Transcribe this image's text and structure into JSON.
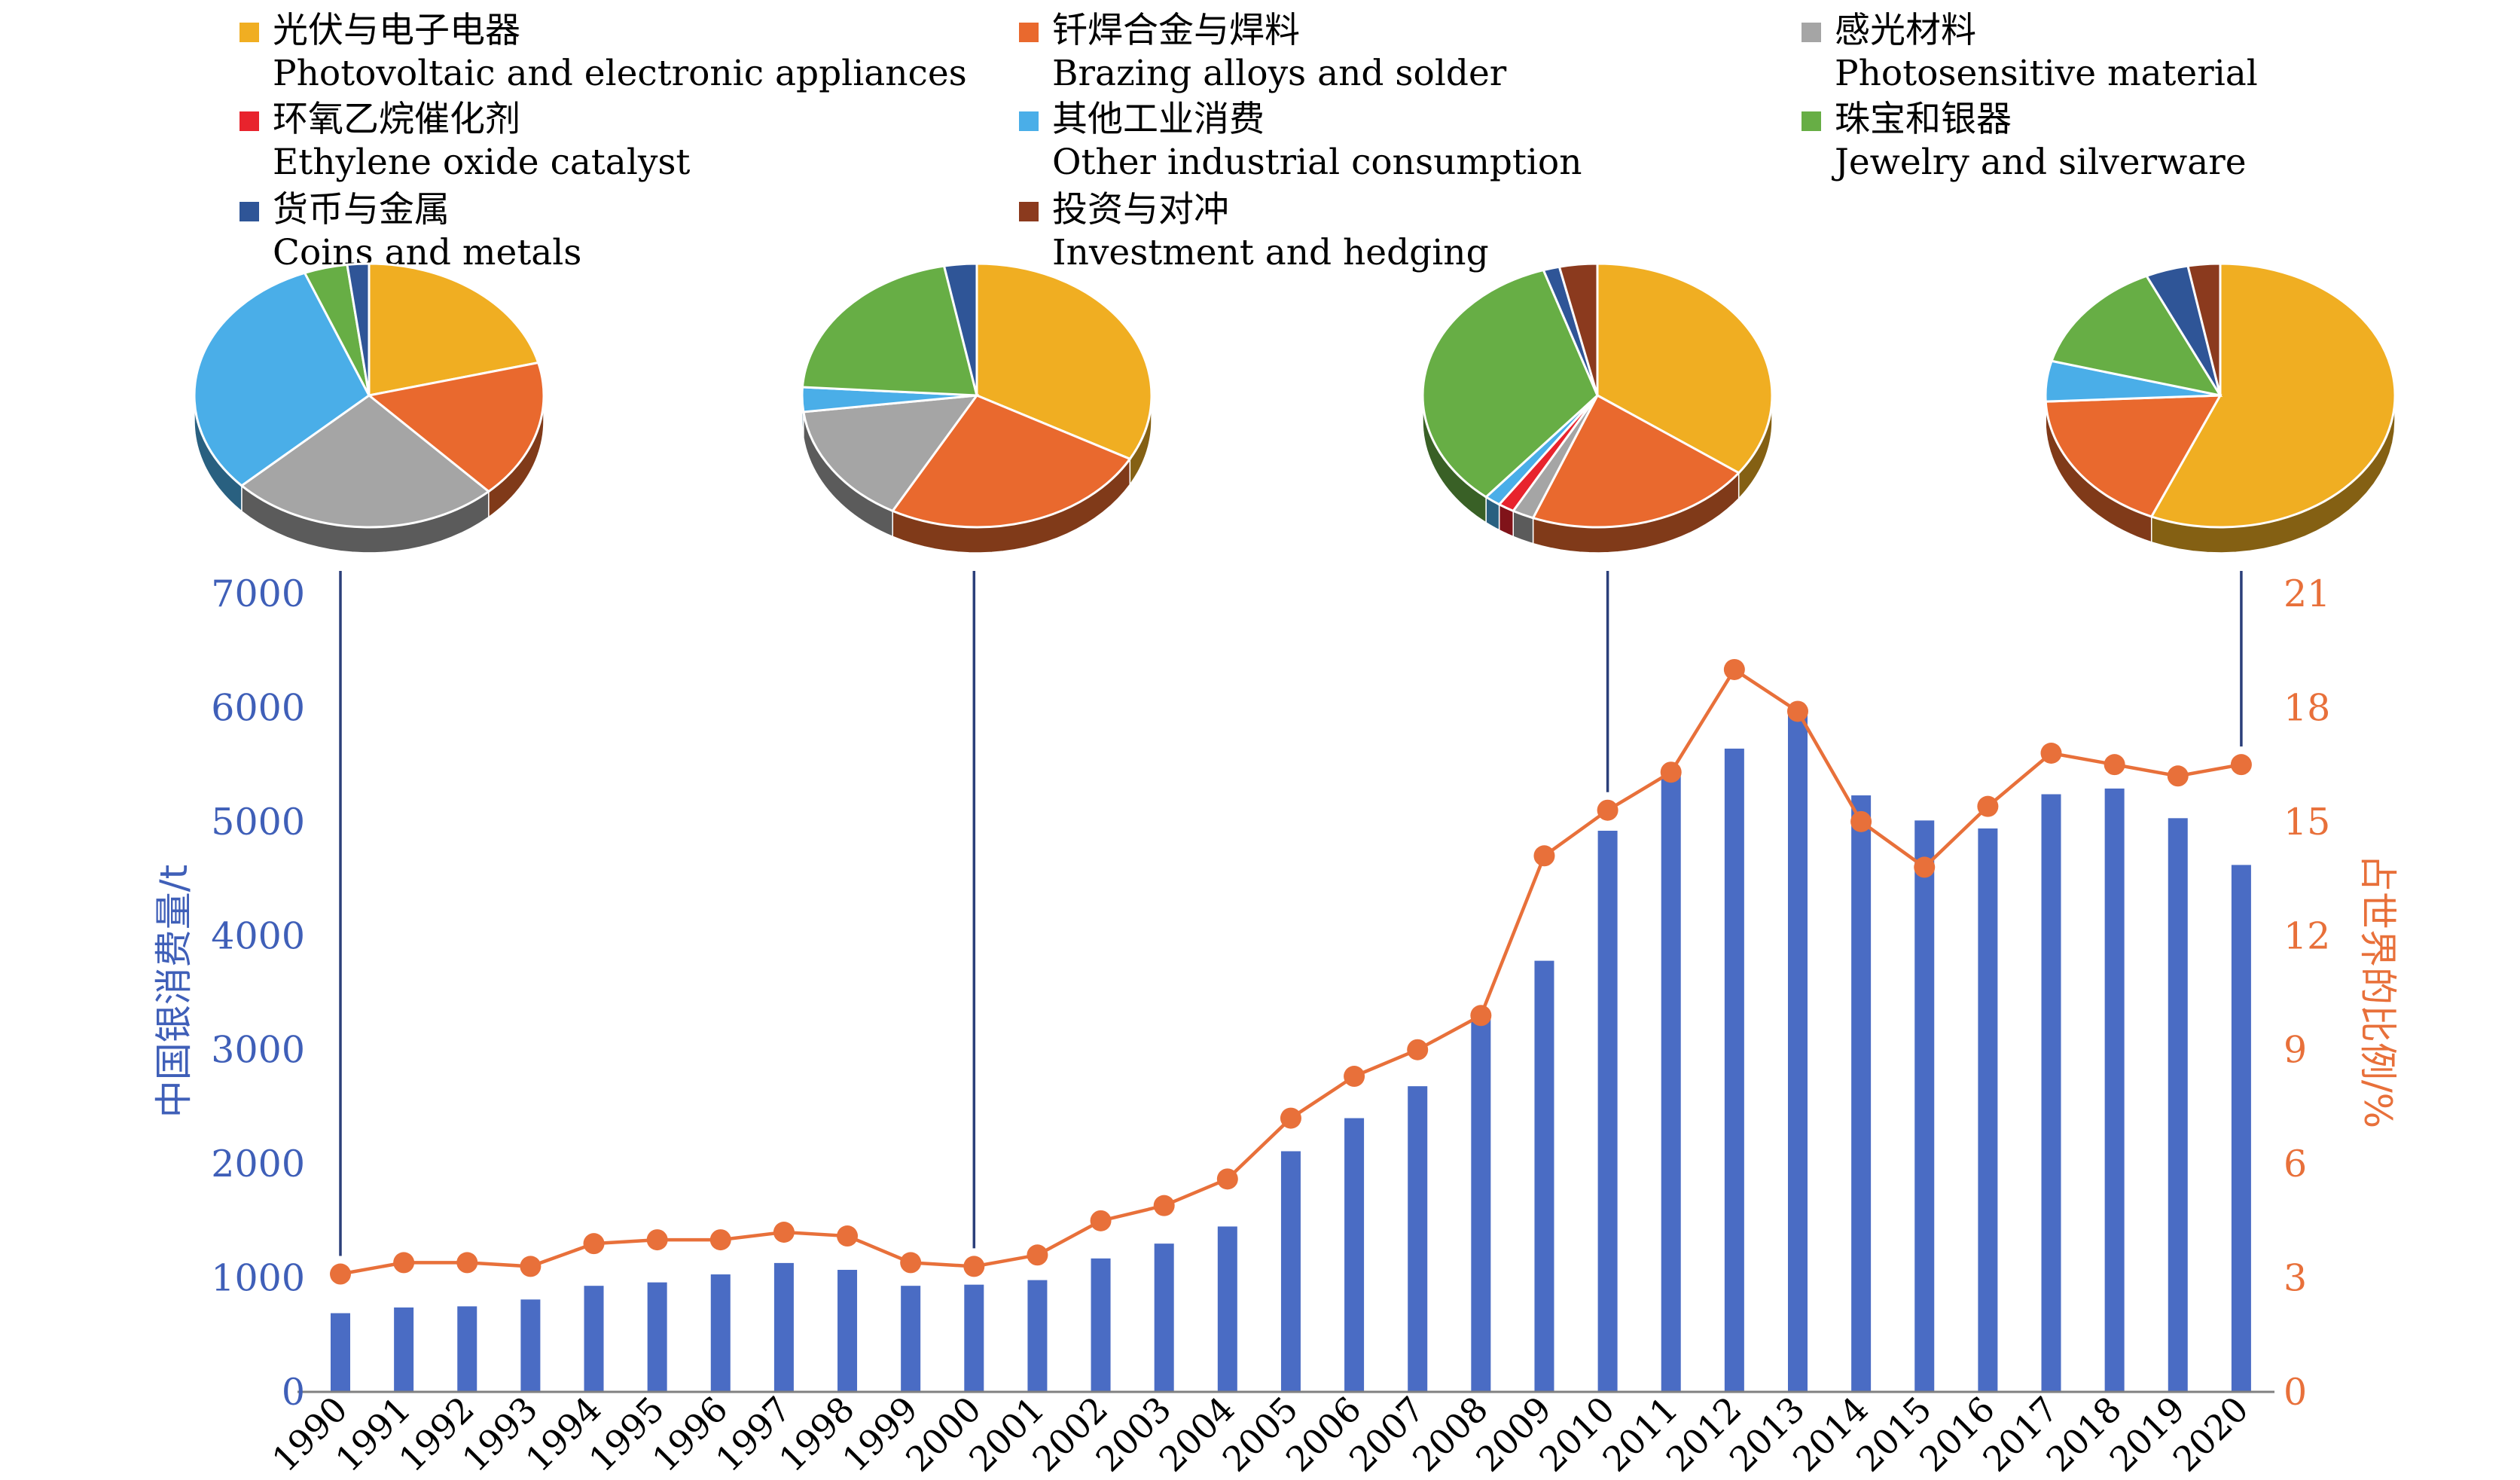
{
  "colors": {
    "photovoltaic": "#F0AE22",
    "brazing": "#E9692E",
    "photosensitive": "#A5A5A5",
    "ethylene": "#E8232D",
    "other_industrial": "#4AAEE8",
    "jewelry": "#67AE45",
    "coins": "#2F5597",
    "investment": "#8B3A1E",
    "bars": "#4A6CC4",
    "line": "#E8703A",
    "left_axis_text": "#3F5FB8",
    "right_axis_text": "#E8703A",
    "leader": "#2B3F7A"
  },
  "legend": [
    {
      "key": "photovoltaic",
      "zh": "光伏与电子电器",
      "en": "Photovoltaic and electronic appliances"
    },
    {
      "key": "brazing",
      "zh": "钎焊合金与焊料",
      "en": "Brazing alloys and solder"
    },
    {
      "key": "photosensitive",
      "zh": "感光材料",
      "en": "Photosensitive material"
    },
    {
      "key": "ethylene",
      "zh": "环氧乙烷催化剂",
      "en": "Ethylene oxide catalyst"
    },
    {
      "key": "other_industrial",
      "zh": "其他工业消费",
      "en": "Other industrial consumption"
    },
    {
      "key": "jewelry",
      "zh": "珠宝和银器",
      "en": "Jewelry and silverware"
    },
    {
      "key": "coins",
      "zh": "货币与金属",
      "en": "Coins and metals"
    },
    {
      "key": "investment",
      "zh": "投资与对冲",
      "en": "Investment and hedging"
    }
  ],
  "chart_data": {
    "type": "bar",
    "title": "",
    "categories": [
      "1990",
      "1991",
      "1992",
      "1993",
      "1994",
      "1995",
      "1996",
      "1997",
      "1998",
      "1999",
      "2000",
      "2001",
      "2002",
      "2003",
      "2004",
      "2005",
      "2006",
      "2007",
      "2008",
      "2009",
      "2010",
      "2011",
      "2012",
      "2013",
      "2014",
      "2015",
      "2016",
      "2017",
      "2018",
      "2019",
      "2020"
    ],
    "series": [
      {
        "name": "中国银消费量/t",
        "type": "bar",
        "axis": "left",
        "values": [
          690,
          740,
          750,
          810,
          930,
          960,
          1030,
          1130,
          1070,
          930,
          940,
          980,
          1170,
          1300,
          1450,
          2110,
          2400,
          2680,
          3290,
          3780,
          4920,
          5450,
          5640,
          5980,
          5230,
          5010,
          4940,
          5240,
          5290,
          5030,
          4620
        ]
      },
      {
        "name": "占世界的比例/%",
        "type": "line",
        "axis": "right",
        "values": [
          3.1,
          3.4,
          3.4,
          3.3,
          3.9,
          4.0,
          4.0,
          4.2,
          4.1,
          3.4,
          3.3,
          3.6,
          4.5,
          4.9,
          5.6,
          7.2,
          8.3,
          9.0,
          9.9,
          14.1,
          15.3,
          16.3,
          19.0,
          17.9,
          15.0,
          13.8,
          15.4,
          16.8,
          16.5,
          16.2,
          16.5
        ]
      }
    ],
    "ylabel_left": "中国银消费量/t",
    "ylabel_right": "占世界的比例/%",
    "ylim_left": [
      0,
      7000
    ],
    "yticks_left": [
      "0",
      "1000",
      "2000",
      "3000",
      "4000",
      "5000",
      "6000",
      "7000"
    ],
    "ylim_right": [
      0,
      21
    ],
    "yticks_right": [
      "0",
      "3",
      "6",
      "9",
      "12",
      "15",
      "18",
      "21"
    ],
    "grid": false,
    "legend_position": "top",
    "pies": [
      {
        "year": "1990",
        "slices": [
          {
            "key": "photovoltaic",
            "value": 21
          },
          {
            "key": "brazing",
            "value": 17
          },
          {
            "key": "photosensitive",
            "value": 25
          },
          {
            "key": "ethylene",
            "value": 0
          },
          {
            "key": "other_industrial",
            "value": 31
          },
          {
            "key": "jewelry",
            "value": 4
          },
          {
            "key": "coins",
            "value": 2
          },
          {
            "key": "investment",
            "value": 0
          }
        ]
      },
      {
        "year": "2000",
        "slices": [
          {
            "key": "photovoltaic",
            "value": 33
          },
          {
            "key": "brazing",
            "value": 25
          },
          {
            "key": "photosensitive",
            "value": 15
          },
          {
            "key": "ethylene",
            "value": 0
          },
          {
            "key": "other_industrial",
            "value": 3
          },
          {
            "key": "jewelry",
            "value": 21
          },
          {
            "key": "coins",
            "value": 3
          },
          {
            "key": "investment",
            "value": 0
          }
        ]
      },
      {
        "year": "2010",
        "slices": [
          {
            "key": "photovoltaic",
            "value": 35
          },
          {
            "key": "brazing",
            "value": 21
          },
          {
            "key": "photosensitive",
            "value": 2
          },
          {
            "key": "ethylene",
            "value": 1.5
          },
          {
            "key": "other_industrial",
            "value": 1.5
          },
          {
            "key": "jewelry",
            "value": 34
          },
          {
            "key": "coins",
            "value": 1.5
          },
          {
            "key": "investment",
            "value": 3.5
          }
        ]
      },
      {
        "year": "2020",
        "slices": [
          {
            "key": "photovoltaic",
            "value": 57
          },
          {
            "key": "brazing",
            "value": 18
          },
          {
            "key": "photosensitive",
            "value": 0
          },
          {
            "key": "ethylene",
            "value": 0
          },
          {
            "key": "other_industrial",
            "value": 5
          },
          {
            "key": "jewelry",
            "value": 14
          },
          {
            "key": "coins",
            "value": 4
          },
          {
            "key": "investment",
            "value": 3
          }
        ]
      }
    ]
  }
}
